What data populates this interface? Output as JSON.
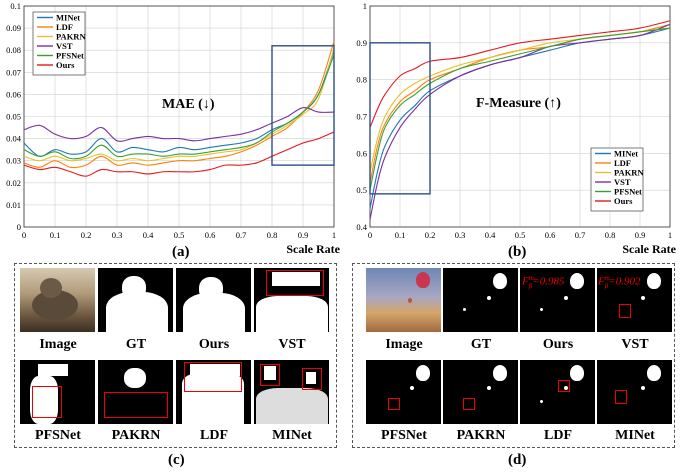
{
  "chart_data": [
    {
      "type": "line",
      "title": "MAE (↓)",
      "xlabel": "Scale Rate",
      "ylabel": "",
      "xlim": [
        0,
        1
      ],
      "ylim": [
        0,
        0.1
      ],
      "xticks": [
        "0",
        "0.1",
        "0.2",
        "0.3",
        "0.4",
        "0.5",
        "0.6",
        "0.7",
        "0.8",
        "0.9",
        "1"
      ],
      "yticks": [
        "0",
        "0.01",
        "0.02",
        "0.03",
        "0.04",
        "0.05",
        "0.06",
        "0.07",
        "0.08",
        "0.09",
        "0.1"
      ],
      "grid": true,
      "legend_position": "top-left",
      "x": [
        0,
        0.05,
        0.1,
        0.15,
        0.2,
        0.25,
        0.3,
        0.35,
        0.4,
        0.45,
        0.5,
        0.55,
        0.6,
        0.65,
        0.7,
        0.75,
        0.8,
        0.85,
        0.9,
        0.95,
        1.0
      ],
      "series": [
        {
          "name": "MINet",
          "color": "#1f77b4",
          "values": [
            0.038,
            0.032,
            0.035,
            0.033,
            0.034,
            0.04,
            0.034,
            0.036,
            0.035,
            0.034,
            0.036,
            0.035,
            0.036,
            0.037,
            0.038,
            0.04,
            0.044,
            0.047,
            0.052,
            0.06,
            0.08
          ]
        },
        {
          "name": "LDF",
          "color": "#ff7f0e",
          "values": [
            0.029,
            0.027,
            0.03,
            0.027,
            0.028,
            0.032,
            0.028,
            0.029,
            0.028,
            0.029,
            0.03,
            0.03,
            0.031,
            0.032,
            0.034,
            0.037,
            0.041,
            0.045,
            0.052,
            0.062,
            0.084
          ]
        },
        {
          "name": "PAKRN",
          "color": "#e8c12a",
          "values": [
            0.032,
            0.03,
            0.032,
            0.03,
            0.031,
            0.033,
            0.03,
            0.031,
            0.03,
            0.031,
            0.032,
            0.032,
            0.033,
            0.034,
            0.035,
            0.038,
            0.042,
            0.046,
            0.051,
            0.058,
            0.081
          ]
        },
        {
          "name": "VST",
          "color": "#7b2fa2",
          "values": [
            0.044,
            0.046,
            0.042,
            0.04,
            0.041,
            0.045,
            0.039,
            0.04,
            0.041,
            0.04,
            0.04,
            0.039,
            0.04,
            0.041,
            0.042,
            0.044,
            0.047,
            0.05,
            0.054,
            0.052,
            0.052
          ]
        },
        {
          "name": "PFSNet",
          "color": "#3aa02c",
          "values": [
            0.035,
            0.032,
            0.034,
            0.031,
            0.032,
            0.037,
            0.032,
            0.033,
            0.033,
            0.032,
            0.033,
            0.033,
            0.034,
            0.035,
            0.036,
            0.038,
            0.043,
            0.047,
            0.052,
            0.06,
            0.078
          ]
        },
        {
          "name": "Ours",
          "color": "#e31a1c",
          "values": [
            0.028,
            0.026,
            0.027,
            0.025,
            0.023,
            0.026,
            0.025,
            0.025,
            0.024,
            0.025,
            0.025,
            0.025,
            0.026,
            0.028,
            0.028,
            0.029,
            0.032,
            0.035,
            0.038,
            0.04,
            0.043
          ]
        }
      ],
      "highlight": {
        "x": [
          0.8,
          1.0
        ],
        "y": [
          0.028,
          0.082
        ]
      }
    },
    {
      "type": "line",
      "title": "F-Measure (↑)",
      "xlabel": "Scale Rate",
      "ylabel": "",
      "xlim": [
        0,
        1
      ],
      "ylim": [
        0.4,
        1.0
      ],
      "xticks": [
        "0",
        "0.1",
        "0.2",
        "0.3",
        "0.4",
        "0.5",
        "0.6",
        "0.7",
        "0.8",
        "0.9",
        "1"
      ],
      "yticks": [
        "0.4",
        "0.5",
        "0.6",
        "0.7",
        "0.8",
        "0.9",
        "1"
      ],
      "grid": true,
      "legend_position": "bottom-right",
      "x": [
        0,
        0.025,
        0.05,
        0.1,
        0.15,
        0.2,
        0.3,
        0.4,
        0.5,
        0.6,
        0.7,
        0.8,
        0.9,
        1.0
      ],
      "series": [
        {
          "name": "MINet",
          "color": "#1f77b4",
          "values": [
            0.45,
            0.55,
            0.62,
            0.69,
            0.73,
            0.77,
            0.81,
            0.84,
            0.86,
            0.88,
            0.9,
            0.91,
            0.92,
            0.94
          ]
        },
        {
          "name": "LDF",
          "color": "#ff7f0e",
          "values": [
            0.52,
            0.62,
            0.68,
            0.74,
            0.77,
            0.8,
            0.83,
            0.86,
            0.88,
            0.89,
            0.91,
            0.92,
            0.93,
            0.95
          ]
        },
        {
          "name": "PAKRN",
          "color": "#e8c12a",
          "values": [
            0.55,
            0.64,
            0.7,
            0.76,
            0.79,
            0.81,
            0.84,
            0.86,
            0.88,
            0.9,
            0.91,
            0.92,
            0.93,
            0.94
          ]
        },
        {
          "name": "VST",
          "color": "#7b2fa2",
          "values": [
            0.42,
            0.52,
            0.59,
            0.67,
            0.72,
            0.76,
            0.81,
            0.84,
            0.86,
            0.89,
            0.9,
            0.91,
            0.92,
            0.95
          ]
        },
        {
          "name": "PFSNet",
          "color": "#3aa02c",
          "values": [
            0.5,
            0.6,
            0.67,
            0.73,
            0.76,
            0.79,
            0.83,
            0.85,
            0.87,
            0.89,
            0.91,
            0.92,
            0.93,
            0.94
          ]
        },
        {
          "name": "Ours",
          "color": "#e31a1c",
          "values": [
            0.67,
            0.72,
            0.76,
            0.81,
            0.83,
            0.85,
            0.86,
            0.88,
            0.9,
            0.91,
            0.92,
            0.93,
            0.94,
            0.96
          ]
        }
      ],
      "highlight": {
        "x": [
          0,
          0.2
        ],
        "y": [
          0.49,
          0.9
        ]
      }
    }
  ],
  "labels": {
    "a": "(a)",
    "b": "(b)",
    "c": "(c)",
    "d": "(d)"
  },
  "panel_c": {
    "captions": [
      "Image",
      "GT",
      "Ours",
      "VST",
      "PFSNet",
      "PAKRN",
      "LDF",
      "MINet"
    ]
  },
  "panel_d": {
    "captions": [
      "Image",
      "GT",
      "Ours",
      "VST",
      "PFSNet",
      "PAKRN",
      "LDF",
      "MINet"
    ],
    "fmeasure_label": "F",
    "fmeasure_super": "m",
    "fmeasure_sub": "β",
    "ours_score": "=0.985",
    "vst_score": "=0.902"
  }
}
